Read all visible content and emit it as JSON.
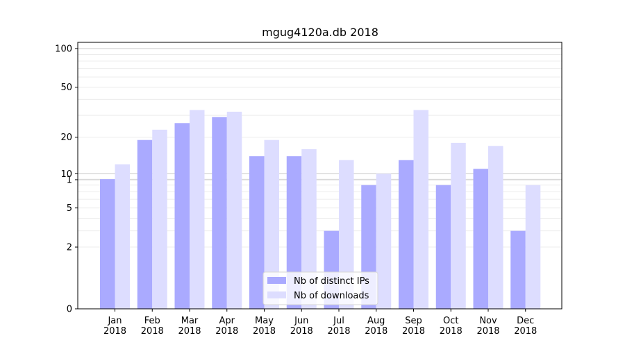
{
  "chart_data": {
    "type": "bar",
    "title": "mgug4120a.db 2018",
    "xlabel": "",
    "ylabel": "",
    "y_scale": "symlog",
    "ylim": [
      0,
      120
    ],
    "yticks": [
      0,
      1,
      2,
      5,
      10,
      20,
      50,
      100
    ],
    "grid": "horizontal",
    "legend_position": "bottom-center",
    "categories": [
      "Jan\n2018",
      "Feb\n2018",
      "Mar\n2018",
      "Apr\n2018",
      "May\n2018",
      "Jun\n2018",
      "Jul\n2018",
      "Aug\n2018",
      "Sep\n2018",
      "Oct\n2018",
      "Nov\n2018",
      "Dec\n2018"
    ],
    "series": [
      {
        "name": "Nb of distinct IPs",
        "color": "#aaaaff",
        "values": [
          9,
          19,
          26,
          29,
          14,
          14,
          3,
          8,
          13,
          8,
          11,
          3
        ]
      },
      {
        "name": "Nb of downloads",
        "color": "#ddddff",
        "values": [
          12,
          23,
          33,
          32,
          19,
          16,
          13,
          10,
          33,
          18,
          17,
          8
        ]
      }
    ]
  }
}
